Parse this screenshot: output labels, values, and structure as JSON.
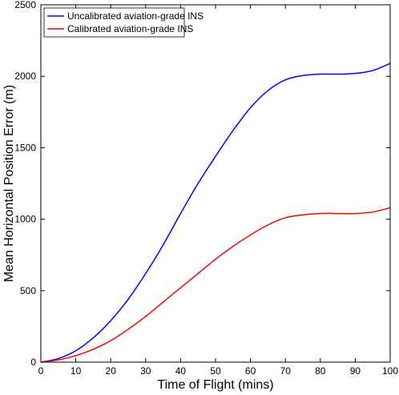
{
  "chart_data": {
    "type": "line",
    "xlabel": "Time of Flight (mins)",
    "ylabel": "Mean Horizontal Position Error (m)",
    "xlim": [
      0,
      100
    ],
    "ylim": [
      0,
      2500
    ],
    "xticks": [
      0,
      10,
      20,
      30,
      40,
      50,
      60,
      70,
      80,
      90,
      100
    ],
    "yticks": [
      0,
      500,
      1000,
      1500,
      2000,
      2500
    ],
    "grid": false,
    "legend_position": "top-left",
    "series": [
      {
        "name": "Uncalibrated aviation-grade INS",
        "color": "#0000ff",
        "x": [
          0,
          5,
          10,
          15,
          20,
          25,
          30,
          35,
          40,
          45,
          50,
          55,
          60,
          65,
          70,
          75,
          80,
          85,
          90,
          95,
          100
        ],
        "y": [
          0,
          25,
          80,
          170,
          290,
          440,
          620,
          820,
          1040,
          1250,
          1440,
          1620,
          1780,
          1900,
          1975,
          2005,
          2015,
          2015,
          2020,
          2040,
          2090
        ]
      },
      {
        "name": "Calibrated aviation-grade INS",
        "color": "#ff0000",
        "x": [
          0,
          5,
          10,
          15,
          20,
          25,
          30,
          35,
          40,
          45,
          50,
          55,
          60,
          65,
          70,
          75,
          80,
          85,
          90,
          95,
          100
        ],
        "y": [
          0,
          15,
          45,
          90,
          150,
          230,
          320,
          420,
          520,
          620,
          720,
          810,
          890,
          960,
          1010,
          1030,
          1040,
          1040,
          1040,
          1050,
          1080
        ]
      }
    ]
  }
}
